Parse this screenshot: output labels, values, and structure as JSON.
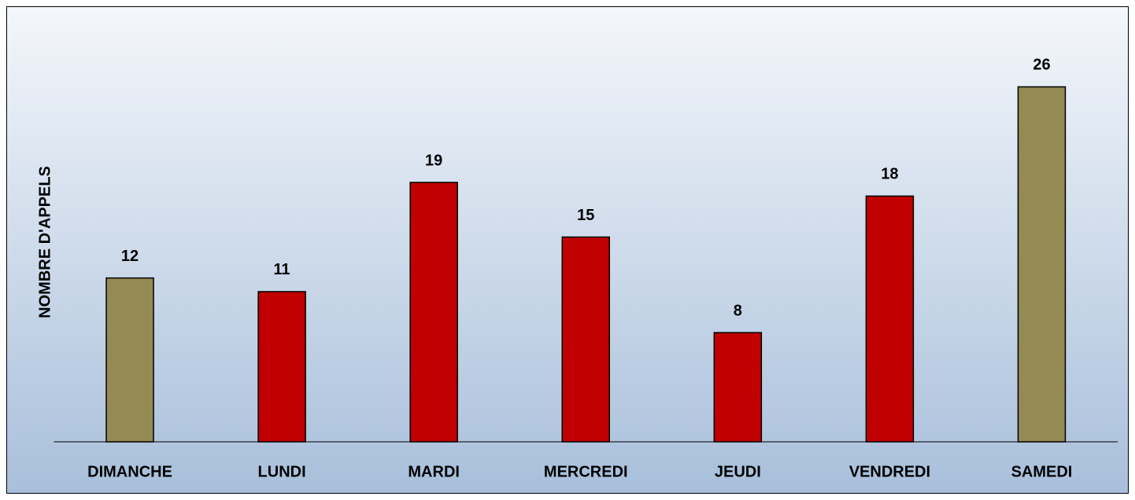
{
  "chart_data": {
    "type": "bar",
    "y_label": "NOMBRE D'APPELS",
    "categories": [
      "DIMANCHE",
      "LUNDI",
      "MARDI",
      "MERCREDI",
      "JEUDI",
      "VENDREDI",
      "SAMEDI"
    ],
    "values": [
      12,
      11,
      19,
      15,
      8,
      18,
      26
    ],
    "colors": [
      "#948a54",
      "#c00000",
      "#c00000",
      "#c00000",
      "#c00000",
      "#c00000",
      "#948a54"
    ],
    "ylim": [
      0,
      30
    ]
  }
}
